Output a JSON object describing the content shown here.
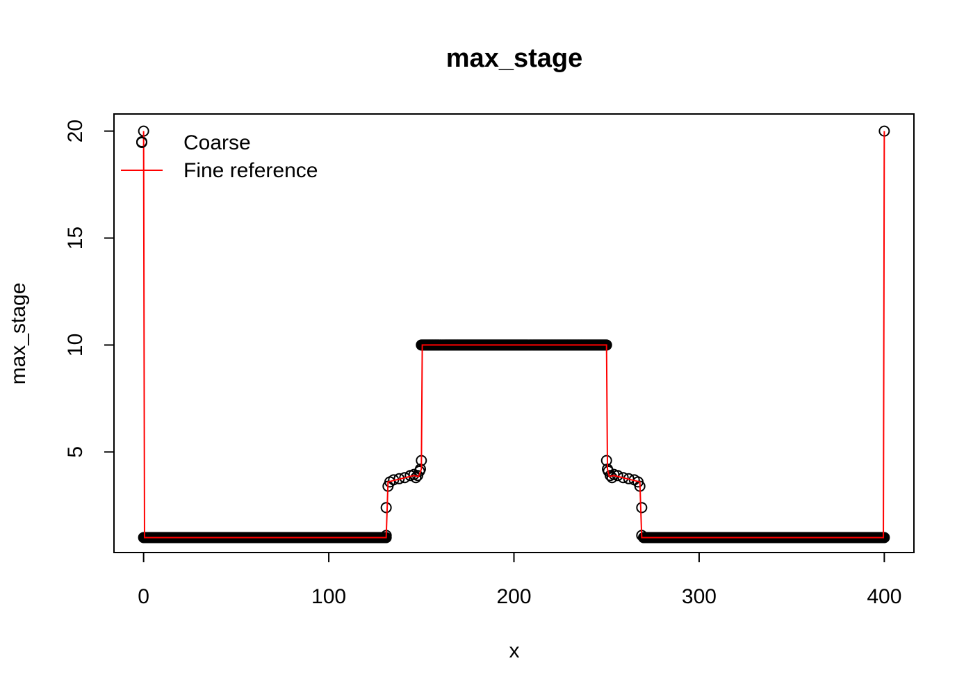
{
  "chart_data": {
    "type": "scatter",
    "title": "max_stage",
    "xlabel": "x",
    "ylabel": "max_stage",
    "xlim": [
      -16,
      416
    ],
    "ylim": [
      0.3,
      20.8
    ],
    "x_ticks": [
      "0",
      "100",
      "200",
      "300",
      "400"
    ],
    "y_ticks": [
      "5",
      "10",
      "15",
      "20"
    ],
    "grid": false,
    "legend": {
      "placement": "top-left",
      "entries": [
        "Coarse",
        "Fine reference"
      ]
    },
    "series": [
      {
        "name": "Coarse",
        "style": "points-open-circle",
        "color": "#000000",
        "segments": [
          {
            "x_from": 0,
            "x_to": 131,
            "y": 1.0
          },
          {
            "x_from": 150,
            "x_to": 250,
            "y": 10.0
          },
          {
            "x_from": 270,
            "x_to": 400,
            "y": 1.0
          }
        ],
        "points": [
          {
            "x": -1,
            "y": 19.5
          },
          {
            "x": 0,
            "y": 20.0
          },
          {
            "x": 131,
            "y": 1.1
          },
          {
            "x": 131,
            "y": 2.4
          },
          {
            "x": 132,
            "y": 3.4
          },
          {
            "x": 133,
            "y": 3.6
          },
          {
            "x": 135,
            "y": 3.7
          },
          {
            "x": 138,
            "y": 3.75
          },
          {
            "x": 141,
            "y": 3.8
          },
          {
            "x": 144,
            "y": 3.9
          },
          {
            "x": 146,
            "y": 3.95
          },
          {
            "x": 147,
            "y": 3.8
          },
          {
            "x": 148,
            "y": 3.9
          },
          {
            "x": 149,
            "y": 4.1
          },
          {
            "x": 149.5,
            "y": 4.2
          },
          {
            "x": 150,
            "y": 4.6
          },
          {
            "x": 250,
            "y": 4.6
          },
          {
            "x": 250.5,
            "y": 4.2
          },
          {
            "x": 251,
            "y": 4.1
          },
          {
            "x": 252,
            "y": 3.9
          },
          {
            "x": 253,
            "y": 3.8
          },
          {
            "x": 254,
            "y": 3.95
          },
          {
            "x": 256,
            "y": 3.9
          },
          {
            "x": 259,
            "y": 3.8
          },
          {
            "x": 262,
            "y": 3.75
          },
          {
            "x": 265,
            "y": 3.7
          },
          {
            "x": 267,
            "y": 3.6
          },
          {
            "x": 268,
            "y": 3.4
          },
          {
            "x": 269,
            "y": 2.4
          },
          {
            "x": 269,
            "y": 1.1
          },
          {
            "x": 400,
            "y": 20.0
          }
        ]
      },
      {
        "name": "Fine reference",
        "style": "line",
        "color": "#ff0000",
        "x": [
          0,
          0.5,
          130,
          131,
          132,
          146,
          148.5,
          150,
          150.5,
          250,
          250.5,
          251.5,
          254,
          268,
          269,
          270,
          399.5,
          400
        ],
        "y": [
          20,
          1.0,
          1.0,
          1.0,
          3.6,
          3.9,
          3.85,
          4.2,
          10.0,
          10.0,
          4.2,
          3.85,
          3.9,
          3.6,
          1.0,
          1.0,
          1.0,
          20
        ]
      }
    ]
  }
}
